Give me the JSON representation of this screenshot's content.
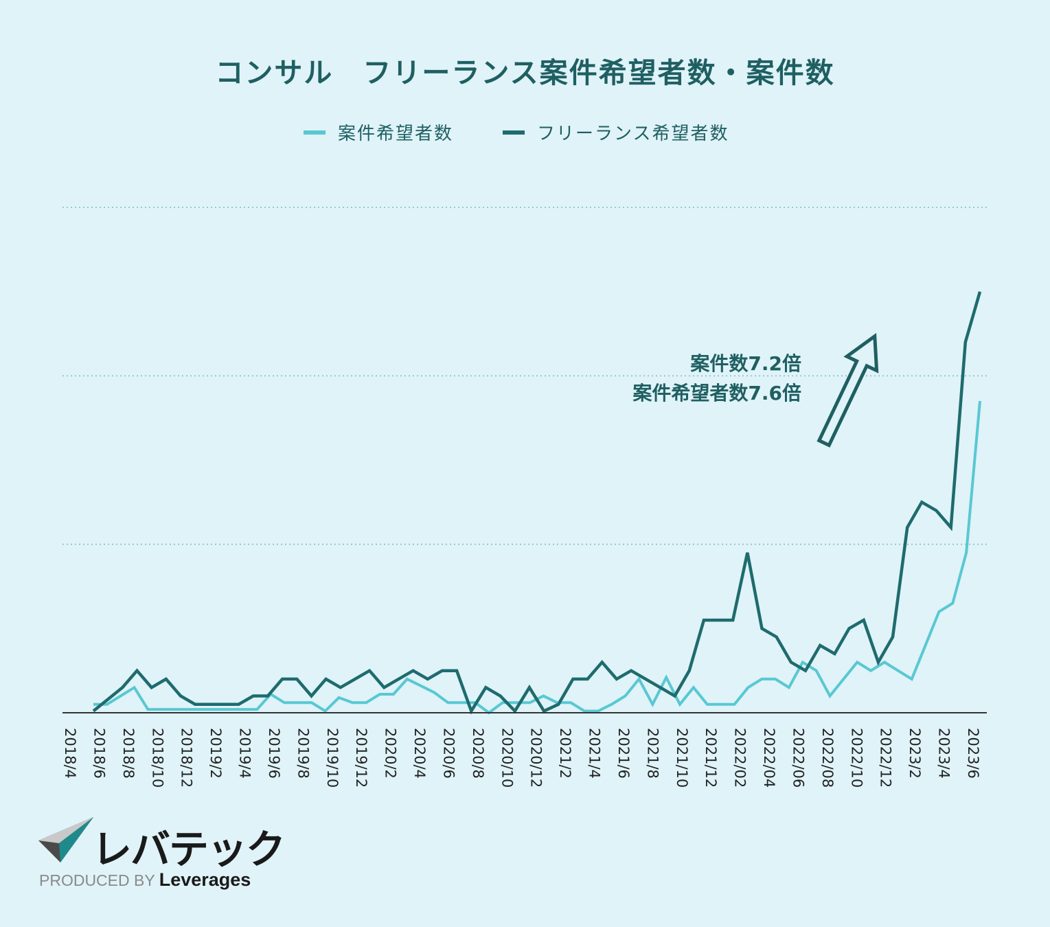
{
  "chart_data": {
    "type": "line",
    "title": "コンサル　フリーランス案件希望者数・案件数",
    "legend": "top-center",
    "ylim": [
      0,
      30
    ],
    "grid": "horizontal-dotted",
    "x_tick_labels": [
      "2018/4",
      "2018/6",
      "2018/8",
      "2018/10",
      "2018/12",
      "2019/2",
      "2019/4",
      "2019/6",
      "2019/8",
      "2019/10",
      "2019/12",
      "2020/2",
      "2020/4",
      "2020/6",
      "2020/8",
      "2020/10",
      "2020/12",
      "2021/2",
      "2021/4",
      "2021/6",
      "2021/8",
      "2021/10",
      "2021/12",
      "2022/02",
      "2022/04",
      "2022/06",
      "2022/08",
      "2022/10",
      "2022/12",
      "2023/2",
      "2023/4",
      "2023/6"
    ],
    "series": [
      {
        "name": "案件希望者数",
        "color": "#59c8d2",
        "values": [
          0.5,
          0.5,
          1.0,
          1.5,
          0.2,
          0.2,
          0.2,
          0.2,
          0.2,
          0.2,
          0.2,
          0.2,
          0.2,
          1.1,
          0.6,
          0.6,
          0.6,
          0.1,
          0.9,
          0.6,
          0.6,
          1.1,
          1.1,
          2.0,
          1.6,
          1.2,
          0.6,
          0.6,
          0.6,
          0.0,
          0.6,
          0.6,
          0.6,
          1.0,
          0.6,
          0.6,
          0.1,
          0.1,
          0.5,
          1.0,
          2.0,
          0.5,
          2.1,
          0.5,
          1.5,
          0.5,
          0.5,
          0.5,
          1.5,
          2.0,
          2.0,
          1.5,
          3.0,
          2.5,
          1.0,
          2.0,
          3.0,
          2.5,
          3.0,
          2.5,
          2.0,
          4.0,
          6.0,
          6.5,
          9.5,
          18.5
        ]
      },
      {
        "name": "フリーランス希望者数",
        "color": "#1f6b6e",
        "values": [
          0.1,
          0.8,
          1.5,
          2.5,
          1.5,
          2.0,
          1.0,
          0.5,
          0.5,
          0.5,
          0.5,
          1.0,
          1.0,
          2.0,
          2.0,
          1.0,
          2.0,
          1.5,
          2.0,
          2.5,
          1.5,
          2.0,
          2.5,
          2.0,
          2.5,
          2.5,
          0.1,
          1.5,
          1.0,
          0.1,
          1.5,
          0.1,
          0.5,
          2.0,
          2.0,
          3.0,
          2.0,
          2.5,
          2.0,
          1.5,
          1.0,
          2.5,
          5.5,
          5.5,
          5.5,
          9.5,
          5.0,
          4.5,
          3.0,
          2.5,
          4.0,
          3.5,
          5.0,
          5.5,
          3.0,
          4.5,
          11.0,
          12.5,
          12.0,
          11.0,
          22.0,
          25.0
        ]
      }
    ],
    "annotation": {
      "line1": "案件数7.2倍",
      "line2": "案件希望者数7.6倍"
    }
  },
  "logo": {
    "brand": "レバテック",
    "produced_by": "PRODUCED BY",
    "company": "Leverages"
  }
}
